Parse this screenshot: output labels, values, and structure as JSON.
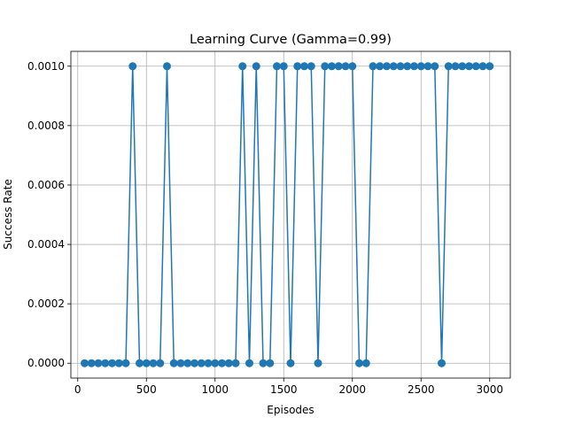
{
  "chart_data": {
    "type": "line",
    "title": "Learning Curve (Gamma=0.99)",
    "xlabel": "Episodes",
    "ylabel": "Success Rate",
    "xlim": [
      -50,
      3150
    ],
    "ylim": [
      -5e-05,
      0.00105
    ],
    "xticks": [
      0,
      500,
      1000,
      1500,
      2000,
      2500,
      3000
    ],
    "xtick_labels": [
      "0",
      "500",
      "1000",
      "1500",
      "2000",
      "2500",
      "3000"
    ],
    "yticks": [
      0,
      0.0002,
      0.0004,
      0.0006,
      0.0008,
      0.001
    ],
    "ytick_labels": [
      "0.0000",
      "0.0002",
      "0.0004",
      "0.0006",
      "0.0008",
      "0.0010"
    ],
    "grid": true,
    "color": "#1f77b4",
    "marker": "circle",
    "series": [
      {
        "x": [
          50,
          100,
          150,
          200,
          250,
          300,
          350,
          400,
          450,
          500,
          550,
          600,
          650,
          700,
          750,
          800,
          850,
          900,
          950,
          1000,
          1050,
          1100,
          1150,
          1200,
          1250,
          1300,
          1350,
          1400,
          1450,
          1500,
          1550,
          1600,
          1650,
          1700,
          1750,
          1800,
          1850,
          1900,
          1950,
          2000,
          2050,
          2100,
          2150,
          2200,
          2250,
          2300,
          2350,
          2400,
          2450,
          2500,
          2550,
          2600,
          2650,
          2700,
          2750,
          2800,
          2850,
          2900,
          2950,
          3000
        ],
        "values": [
          0,
          0,
          0,
          0,
          0,
          0,
          0,
          0.001,
          0,
          0,
          0,
          0,
          0.001,
          0,
          0,
          0,
          0,
          0,
          0,
          0,
          0,
          0,
          0,
          0.001,
          0,
          0.001,
          0,
          0,
          0.001,
          0.001,
          0,
          0.001,
          0.001,
          0.001,
          0,
          0.001,
          0.001,
          0.001,
          0.001,
          0.001,
          0,
          0,
          0.001,
          0.001,
          0.001,
          0.001,
          0.001,
          0.001,
          0.001,
          0.001,
          0.001,
          0.001,
          0,
          0.001,
          0.001,
          0.001,
          0.001,
          0.001,
          0.001,
          0.001
        ]
      }
    ]
  }
}
